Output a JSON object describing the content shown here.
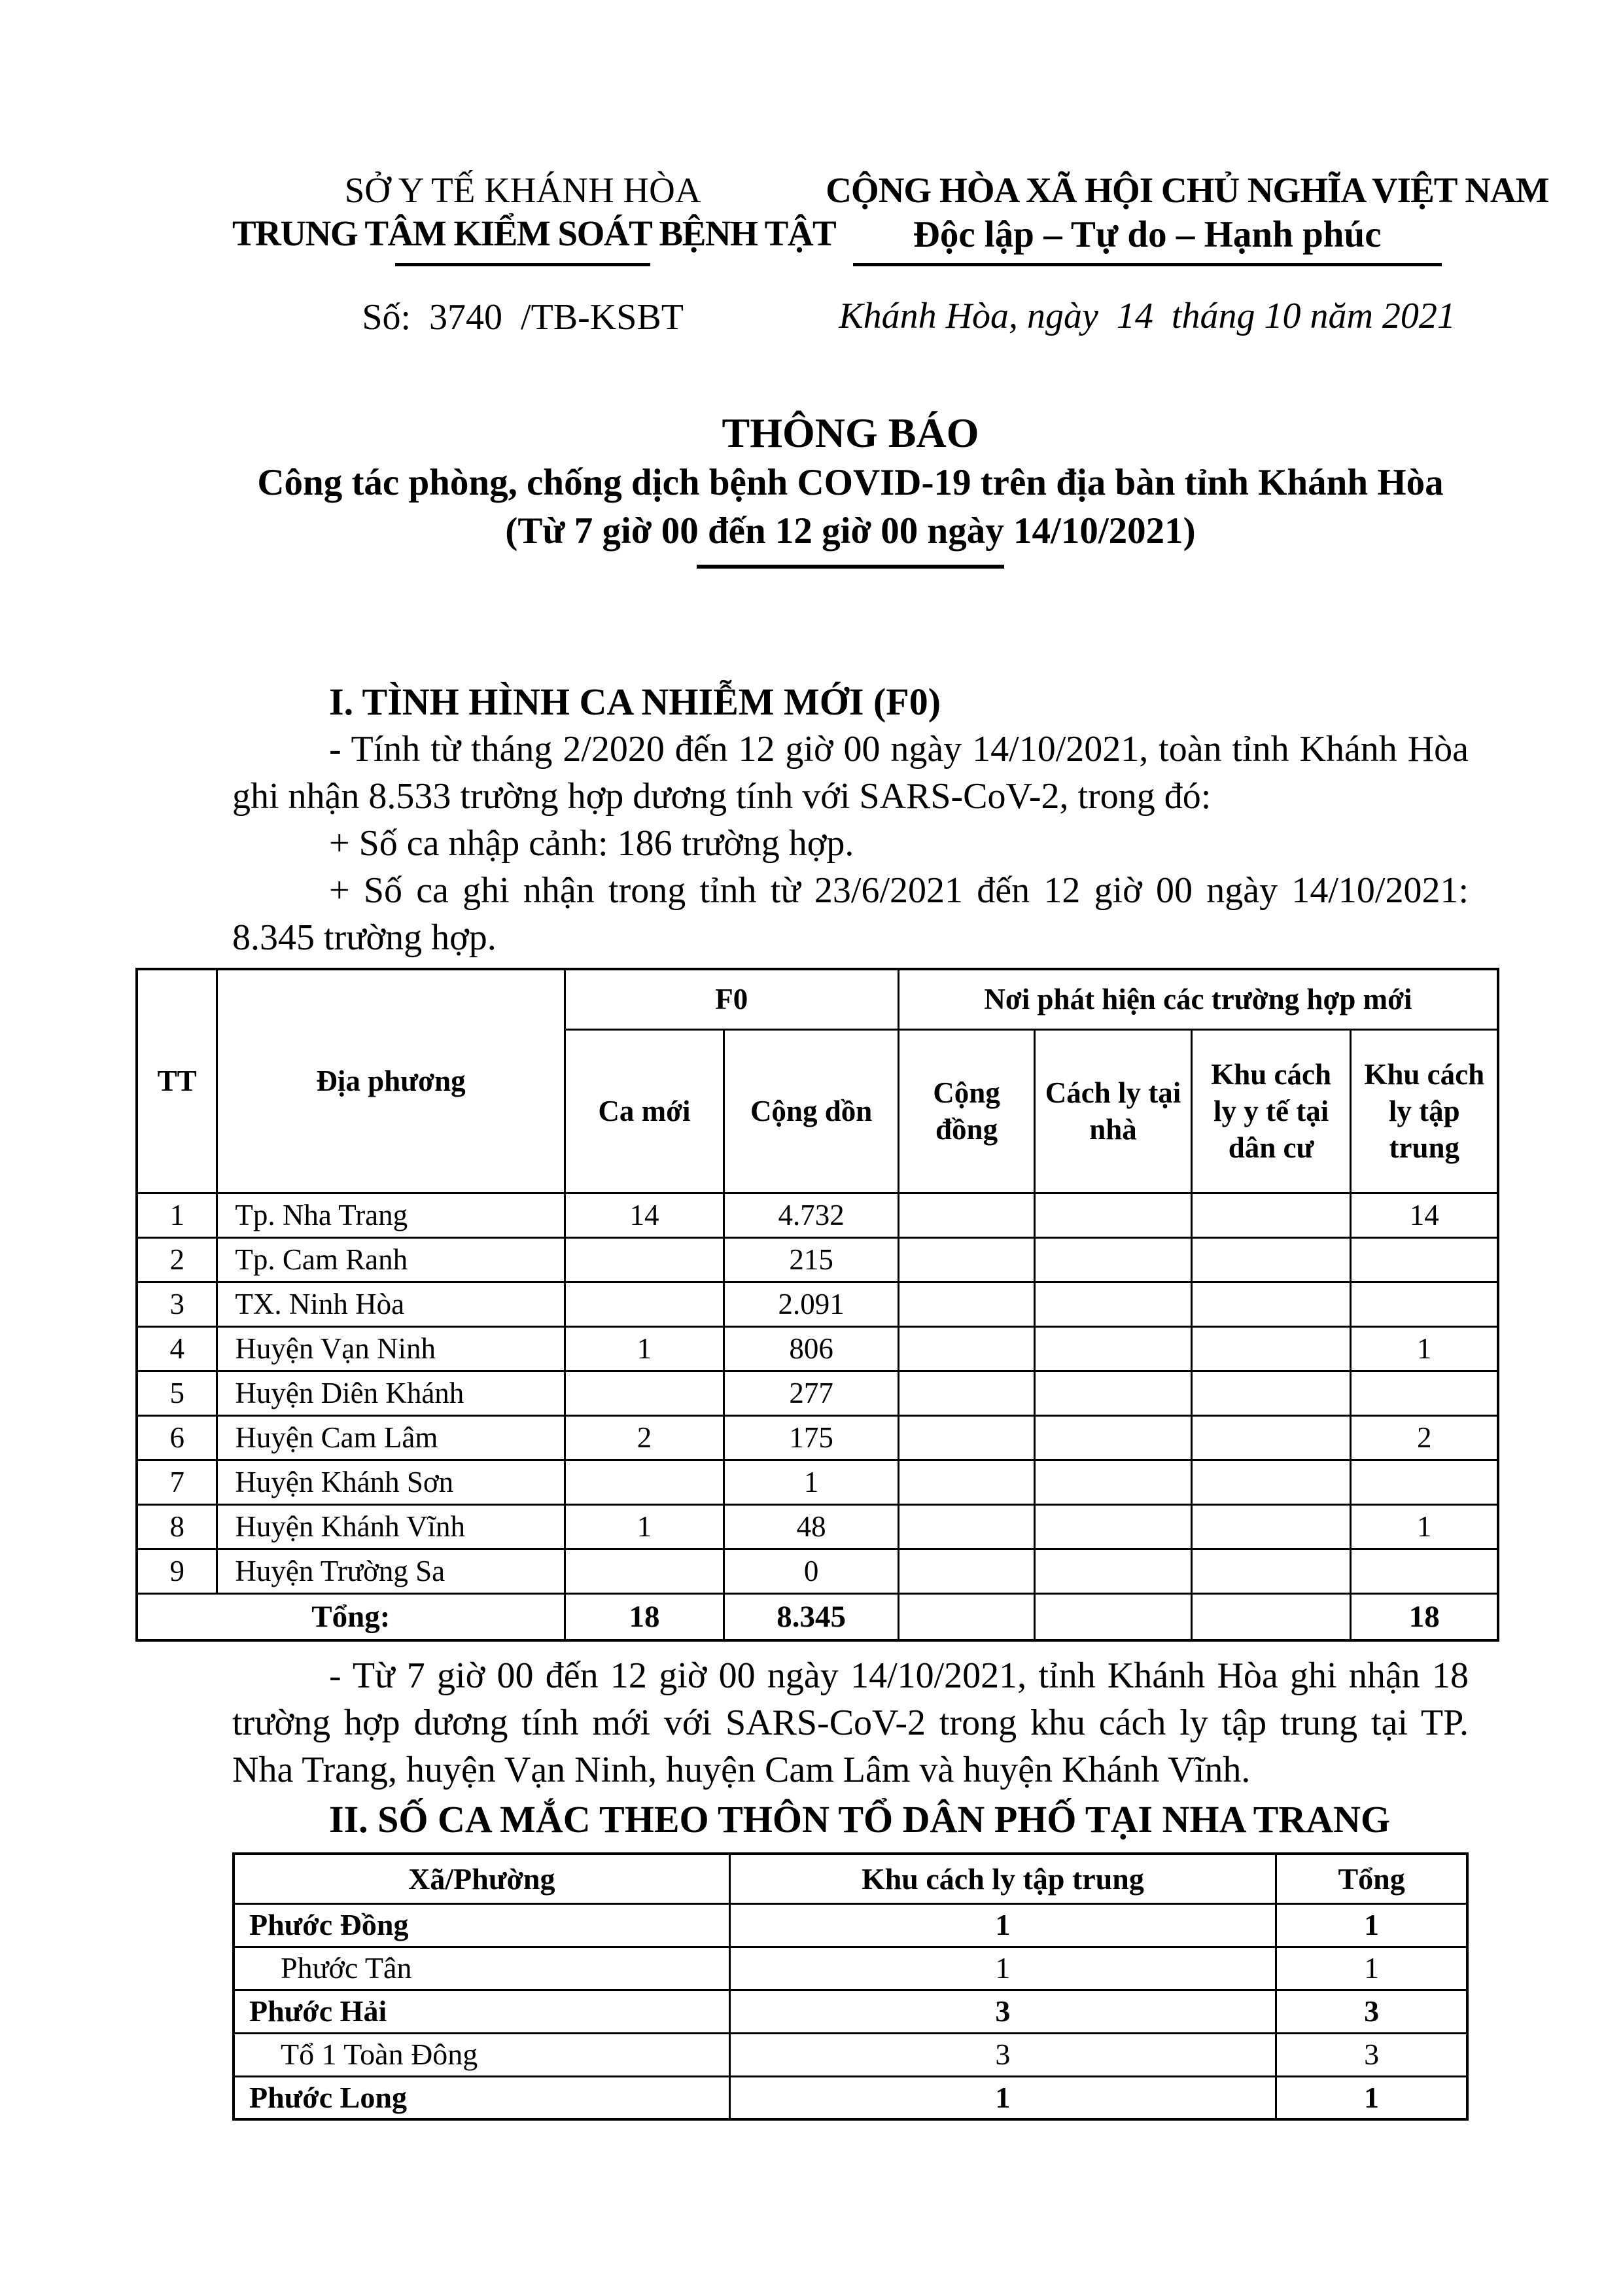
{
  "letterhead": {
    "org": {
      "line1": "SỞ Y TẾ KHÁNH HÒA",
      "line2": "TRUNG TÂM KIỂM SOÁT BỆNH TẬT",
      "doc_number": "Số:  3740  /TB-KSBT"
    },
    "national": {
      "line1": "CỘNG HÒA XÃ HỘI CHỦ NGHĨA VIỆT NAM",
      "line2": "Độc lập – Tự do – Hạnh phúc",
      "place_date": "Khánh Hòa, ngày  14  tháng 10 năm 2021"
    }
  },
  "title": {
    "main": "THÔNG BÁO",
    "sub1": "Công tác phòng, chống dịch bệnh COVID-19 trên địa bàn tỉnh Khánh Hòa",
    "sub2": "(Từ 7 giờ 00 đến 12 giờ 00 ngày 14/10/2021)"
  },
  "section1": {
    "heading": "I. TÌNH HÌNH CA NHIỄM MỚI (F0)",
    "para1": "- Tính từ tháng 2/2020 đến 12 giờ 00 ngày 14/10/2021, toàn tỉnh Khánh Hòa ghi nhận 8.533 trường hợp dương tính với SARS-CoV-2, trong đó:",
    "bullet1": "+ Số ca nhập cảnh: 186 trường hợp.",
    "bullet2": "+ Số ca ghi nhận trong tỉnh từ 23/6/2021 đến 12 giờ 00 ngày 14/10/2021: 8.345 trường hợp.",
    "note": "- Từ 7 giờ 00 đến 12 giờ 00 ngày 14/10/2021, tỉnh Khánh Hòa ghi nhận 18 trường hợp dương tính mới với SARS-CoV-2 trong khu cách ly tập trung tại TP. Nha Trang, huyện Vạn Ninh, huyện Cam Lâm và huyện Khánh Vĩnh."
  },
  "table1": {
    "headers": {
      "tt": "TT",
      "locality": "Địa phương",
      "f0_group": "F0",
      "place_group": "Nơi phát hiện các trường hợp mới",
      "new_cases": "Ca mới",
      "cumulative": "Cộng dồn",
      "community": "Cộng đồng",
      "home_quarantine": "Cách ly tại nhà",
      "medical_zone": "Khu cách ly y tế tại dân cư",
      "central_quarantine": "Khu cách ly tập trung"
    },
    "rows": [
      {
        "tt": "1",
        "locality": "Tp. Nha Trang",
        "new": "14",
        "cum": "4.732",
        "community": "",
        "home": "",
        "medical": "",
        "central": "14"
      },
      {
        "tt": "2",
        "locality": "Tp. Cam Ranh",
        "new": "",
        "cum": "215",
        "community": "",
        "home": "",
        "medical": "",
        "central": ""
      },
      {
        "tt": "3",
        "locality": "TX. Ninh Hòa",
        "new": "",
        "cum": "2.091",
        "community": "",
        "home": "",
        "medical": "",
        "central": ""
      },
      {
        "tt": "4",
        "locality": "Huyện Vạn Ninh",
        "new": "1",
        "cum": "806",
        "community": "",
        "home": "",
        "medical": "",
        "central": "1"
      },
      {
        "tt": "5",
        "locality": "Huyện Diên Khánh",
        "new": "",
        "cum": "277",
        "community": "",
        "home": "",
        "medical": "",
        "central": ""
      },
      {
        "tt": "6",
        "locality": "Huyện Cam Lâm",
        "new": "2",
        "cum": "175",
        "community": "",
        "home": "",
        "medical": "",
        "central": "2"
      },
      {
        "tt": "7",
        "locality": "Huyện Khánh Sơn",
        "new": "",
        "cum": "1",
        "community": "",
        "home": "",
        "medical": "",
        "central": ""
      },
      {
        "tt": "8",
        "locality": "Huyện Khánh Vĩnh",
        "new": "1",
        "cum": "48",
        "community": "",
        "home": "",
        "medical": "",
        "central": "1"
      },
      {
        "tt": "9",
        "locality": "Huyện Trường Sa",
        "new": "",
        "cum": "0",
        "community": "",
        "home": "",
        "medical": "",
        "central": ""
      }
    ],
    "total": {
      "label": "Tổng:",
      "new": "18",
      "cum": "8.345",
      "community": "",
      "home": "",
      "medical": "",
      "central": "18"
    }
  },
  "section2": {
    "heading": "II. SỐ CA MẮC THEO THÔN TỔ DÂN PHỐ TẠI NHA TRANG",
    "table": {
      "headers": {
        "ward": "Xã/Phường",
        "central_quarantine": "Khu cách ly tập trung",
        "total": "Tổng"
      },
      "rows": [
        {
          "ward": "Phước Đồng",
          "central": "1",
          "total": "1",
          "level": "group"
        },
        {
          "ward": "Phước Tân",
          "central": "1",
          "total": "1",
          "level": "sub"
        },
        {
          "ward": "Phước Hải",
          "central": "3",
          "total": "3",
          "level": "group"
        },
        {
          "ward": "Tổ 1 Toàn Đông",
          "central": "3",
          "total": "3",
          "level": "sub"
        },
        {
          "ward": "Phước Long",
          "central": "1",
          "total": "1",
          "level": "group"
        }
      ]
    }
  }
}
